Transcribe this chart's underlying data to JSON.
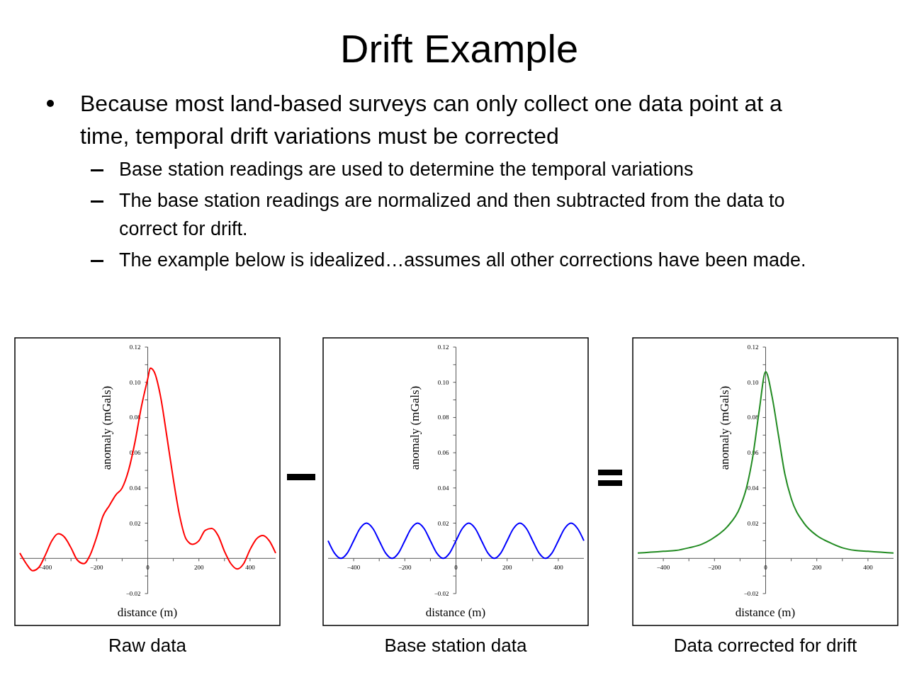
{
  "chart_data": [
    {
      "type": "line",
      "title": "Raw data",
      "xlabel": "distance (m)",
      "ylabel": "anomaly (mGals)",
      "grid": false,
      "annotations": [
        "Drift Example",
        "Because most land-based surveys can only collect one data point at a time, temporal drift variations must be corrected",
        "Base station readings are used to determine the temporal variations",
        "The base station readings are normalized and then subtracted from the data to correct for drift.",
        "The example below is idealized…assumes all other corrections have been made."
      ],
      "xlim": [
        -500,
        500
      ],
      "ylim": [
        -0.02,
        0.12
      ],
      "xticks": [
        {
          "value": -400,
          "label": "−400"
        },
        {
          "value": -300,
          "label": null
        },
        {
          "value": -200,
          "label": "−200"
        },
        {
          "value": -100,
          "label": null
        },
        0,
        {
          "value": 100,
          "label": null
        },
        200,
        {
          "value": 300,
          "label": null
        },
        400
      ],
      "yticks": [
        {
          "value": -0.02,
          "label": "−0.02"
        },
        {
          "value": -0.01,
          "label": null
        },
        {
          "value": 0.01,
          "label": null
        },
        0.02,
        {
          "value": 0.03,
          "label": null
        },
        0.04,
        {
          "value": 0.05,
          "label": null
        },
        0.06,
        {
          "value": 0.07,
          "label": null
        },
        0.08,
        {
          "value": 0.09,
          "label": null
        },
        {
          "value": 0.1,
          "label": "0.10"
        },
        {
          "value": 0.11,
          "label": null
        },
        0.12
      ],
      "series": [
        {
          "color": "#ff0000",
          "x": [
            -500,
            -475,
            -450,
            -425,
            -400,
            -375,
            -350,
            -325,
            -300,
            -275,
            -250,
            -225,
            -200,
            -175,
            -150,
            -125,
            -100,
            -75,
            -50,
            -25,
            0,
            10,
            25,
            50,
            75,
            100,
            125,
            150,
            175,
            200,
            225,
            250,
            275,
            300,
            325,
            350,
            375,
            400,
            425,
            450,
            475,
            500
          ],
          "values": [
            0.003,
            -0.003,
            -0.007,
            -0.005,
            0.002,
            0.01,
            0.014,
            0.012,
            0.006,
            -0.001,
            -0.003,
            0.002,
            0.012,
            0.024,
            0.03,
            0.036,
            0.04,
            0.05,
            0.066,
            0.086,
            0.102,
            0.108,
            0.106,
            0.092,
            0.069,
            0.045,
            0.024,
            0.011,
            0.008,
            0.01,
            0.016,
            0.017,
            0.013,
            0.004,
            -0.003,
            -0.006,
            -0.003,
            0.005,
            0.011,
            0.013,
            0.01,
            0.003
          ]
        }
      ]
    },
    {
      "type": "line",
      "title": "Base station data",
      "xlabel": "distance (m)",
      "ylabel": "anomaly (mGals)",
      "grid": false,
      "xlim": [
        -500,
        500
      ],
      "ylim": [
        -0.02,
        0.12
      ],
      "xticks": [
        {
          "value": -400,
          "label": "−400"
        },
        {
          "value": -300,
          "label": null
        },
        {
          "value": -200,
          "label": "−200"
        },
        {
          "value": -100,
          "label": null
        },
        0,
        {
          "value": 100,
          "label": null
        },
        200,
        {
          "value": 300,
          "label": null
        },
        400
      ],
      "yticks": [
        {
          "value": -0.02,
          "label": "−0.02"
        },
        {
          "value": -0.01,
          "label": null
        },
        {
          "value": 0.01,
          "label": null
        },
        0.02,
        {
          "value": 0.03,
          "label": null
        },
        0.04,
        {
          "value": 0.05,
          "label": null
        },
        0.06,
        {
          "value": 0.07,
          "label": null
        },
        0.08,
        {
          "value": 0.09,
          "label": null
        },
        {
          "value": 0.1,
          "label": "0.10"
        },
        {
          "value": 0.11,
          "label": null
        },
        0.12
      ],
      "series": [
        {
          "color": "#0000ff",
          "x": [
            -500,
            -475,
            -450,
            -425,
            -400,
            -375,
            -350,
            -325,
            -300,
            -275,
            -250,
            -225,
            -200,
            -175,
            -150,
            -125,
            -100,
            -75,
            -50,
            -25,
            0,
            25,
            50,
            75,
            100,
            125,
            150,
            175,
            200,
            225,
            250,
            275,
            300,
            325,
            350,
            375,
            400,
            425,
            450,
            475,
            500
          ],
          "values": [
            0.01,
            0.003,
            0.0,
            0.003,
            0.01,
            0.017,
            0.02,
            0.017,
            0.01,
            0.003,
            0.0,
            0.003,
            0.01,
            0.017,
            0.02,
            0.017,
            0.01,
            0.003,
            0.0,
            0.003,
            0.01,
            0.017,
            0.02,
            0.017,
            0.01,
            0.003,
            0.0,
            0.003,
            0.01,
            0.017,
            0.02,
            0.017,
            0.01,
            0.003,
            0.0,
            0.003,
            0.01,
            0.017,
            0.02,
            0.017,
            0.01
          ]
        }
      ]
    },
    {
      "type": "line",
      "title": "Data corrected for drift",
      "xlabel": "distance (m)",
      "ylabel": "anomaly (mGals)",
      "grid": false,
      "xlim": [
        -500,
        500
      ],
      "ylim": [
        -0.02,
        0.12
      ],
      "xticks": [
        {
          "value": -400,
          "label": "−400"
        },
        {
          "value": -300,
          "label": null
        },
        {
          "value": -200,
          "label": "−200"
        },
        {
          "value": -100,
          "label": null
        },
        0,
        {
          "value": 100,
          "label": null
        },
        200,
        {
          "value": 300,
          "label": null
        },
        400
      ],
      "yticks": [
        {
          "value": -0.02,
          "label": "−0.02"
        },
        {
          "value": -0.01,
          "label": null
        },
        {
          "value": 0.01,
          "label": null
        },
        0.02,
        {
          "value": 0.03,
          "label": null
        },
        0.04,
        {
          "value": 0.05,
          "label": null
        },
        0.06,
        {
          "value": 0.07,
          "label": null
        },
        0.08,
        {
          "value": 0.09,
          "label": null
        },
        {
          "value": 0.1,
          "label": "0.10"
        },
        {
          "value": 0.11,
          "label": null
        },
        0.12
      ],
      "series": [
        {
          "color": "#228b22",
          "x": [
            -500,
            -450,
            -400,
            -350,
            -300,
            -250,
            -200,
            -150,
            -100,
            -75,
            -50,
            -25,
            0,
            25,
            50,
            75,
            100,
            150,
            200,
            250,
            300,
            350,
            400,
            450,
            500
          ],
          "values": [
            0.003,
            0.0035,
            0.004,
            0.0045,
            0.006,
            0.008,
            0.012,
            0.018,
            0.029,
            0.04,
            0.058,
            0.084,
            0.106,
            0.092,
            0.07,
            0.048,
            0.034,
            0.02,
            0.013,
            0.009,
            0.006,
            0.0045,
            0.004,
            0.0035,
            0.003
          ]
        }
      ]
    }
  ]
}
